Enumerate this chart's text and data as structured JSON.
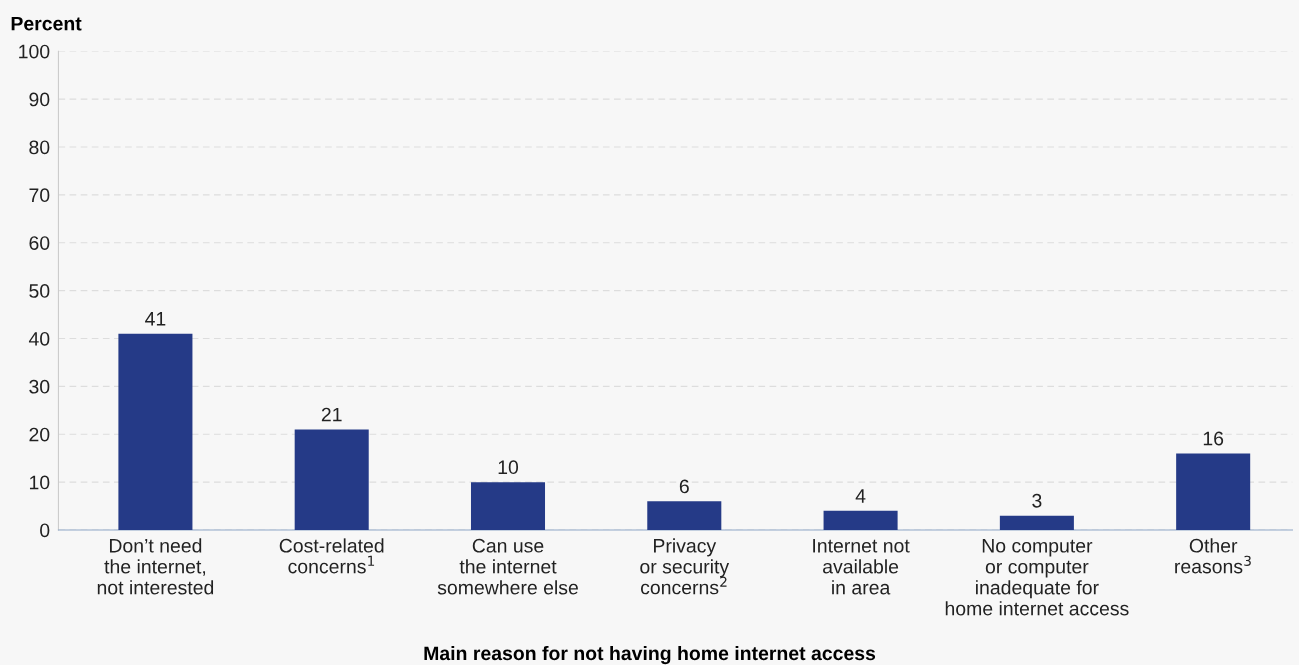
{
  "chart_data": {
    "type": "bar",
    "ylabel": "Percent",
    "xlabel": "Main reason for not having home internet access",
    "categories": [
      "Don’t need\nthe internet,\nnot interested",
      "Cost-related\nconcerns$^{1}$",
      "Can use\nthe internet\nsomewhere else",
      "Privacy\nor security\nconcerns$^{2}$",
      "Internet not\navailable\nin area",
      "No computer\nor computer\ninadequate for\nhome internet access",
      "Other\nreasons$^{3}$"
    ],
    "values": [
      41,
      21,
      10,
      6,
      4,
      3,
      16
    ],
    "data_labels": true,
    "color": "#253a87",
    "ylim": [
      0,
      100
    ],
    "yticks": [
      0,
      10,
      20,
      30,
      40,
      50,
      60,
      70,
      80,
      90,
      100
    ],
    "grid": "y"
  }
}
